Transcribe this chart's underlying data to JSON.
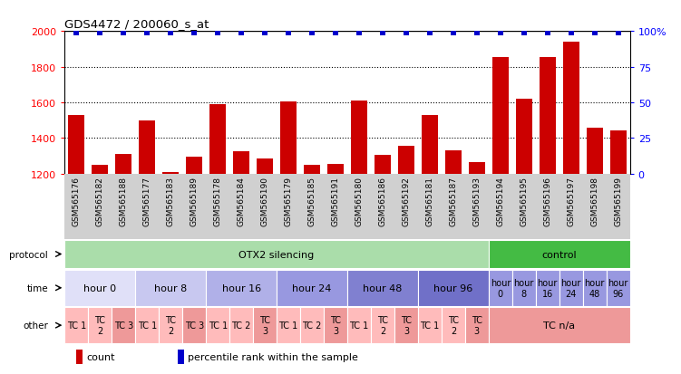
{
  "title": "GDS4472 / 200060_s_at",
  "samples": [
    "GSM565176",
    "GSM565182",
    "GSM565188",
    "GSM565177",
    "GSM565183",
    "GSM565189",
    "GSM565178",
    "GSM565184",
    "GSM565190",
    "GSM565179",
    "GSM565185",
    "GSM565191",
    "GSM565180",
    "GSM565186",
    "GSM565192",
    "GSM565181",
    "GSM565187",
    "GSM565193",
    "GSM565194",
    "GSM565195",
    "GSM565196",
    "GSM565197",
    "GSM565198",
    "GSM565199"
  ],
  "counts": [
    1530,
    1250,
    1310,
    1495,
    1210,
    1295,
    1590,
    1325,
    1285,
    1605,
    1250,
    1255,
    1610,
    1305,
    1355,
    1530,
    1330,
    1265,
    1855,
    1620,
    1855,
    1940,
    1455,
    1440
  ],
  "percentiles": [
    99,
    99,
    99,
    99,
    99,
    99,
    99,
    99,
    99,
    99,
    99,
    99,
    99,
    99,
    99,
    99,
    99,
    99,
    99,
    99,
    99,
    99,
    99,
    99
  ],
  "ylim_left": [
    1200,
    2000
  ],
  "ylim_right": [
    0,
    100
  ],
  "yticks_left": [
    1200,
    1400,
    1600,
    1800,
    2000
  ],
  "yticks_right": [
    0,
    25,
    50,
    75,
    100
  ],
  "bar_color": "#cc0000",
  "dot_color": "#0000cc",
  "bg_gray": "#d0d0d0",
  "protocol_groups": [
    {
      "label": "OTX2 silencing",
      "start": 0,
      "end": 18,
      "color": "#aaddaa"
    },
    {
      "label": "control",
      "start": 18,
      "end": 24,
      "color": "#44bb44"
    }
  ],
  "time_groups": [
    {
      "label": "hour 0",
      "start": 0,
      "end": 3,
      "color": "#e0e0f8"
    },
    {
      "label": "hour 8",
      "start": 3,
      "end": 6,
      "color": "#c8c8f0"
    },
    {
      "label": "hour 16",
      "start": 6,
      "end": 9,
      "color": "#b0b0e8"
    },
    {
      "label": "hour 24",
      "start": 9,
      "end": 12,
      "color": "#9898e0"
    },
    {
      "label": "hour 48",
      "start": 12,
      "end": 15,
      "color": "#8080d0"
    },
    {
      "label": "hour 96",
      "start": 15,
      "end": 18,
      "color": "#7070c8"
    },
    {
      "label": "hour\n0",
      "start": 18,
      "end": 19,
      "color": "#9898e0"
    },
    {
      "label": "hour\n8",
      "start": 19,
      "end": 20,
      "color": "#9898e0"
    },
    {
      "label": "hour\n16",
      "start": 20,
      "end": 21,
      "color": "#9898e0"
    },
    {
      "label": "hour\n24",
      "start": 21,
      "end": 22,
      "color": "#9898e0"
    },
    {
      "label": "hour\n48",
      "start": 22,
      "end": 23,
      "color": "#9898e0"
    },
    {
      "label": "hour\n96",
      "start": 23,
      "end": 24,
      "color": "#9898e0"
    }
  ],
  "other_groups": [
    {
      "label": "TC 1",
      "start": 0,
      "end": 1,
      "color": "#ffbbbb"
    },
    {
      "label": "TC\n2",
      "start": 1,
      "end": 2,
      "color": "#ffbbbb"
    },
    {
      "label": "TC 3",
      "start": 2,
      "end": 3,
      "color": "#ee9999"
    },
    {
      "label": "TC 1",
      "start": 3,
      "end": 4,
      "color": "#ffbbbb"
    },
    {
      "label": "TC\n2",
      "start": 4,
      "end": 5,
      "color": "#ffbbbb"
    },
    {
      "label": "TC 3",
      "start": 5,
      "end": 6,
      "color": "#ee9999"
    },
    {
      "label": "TC 1",
      "start": 6,
      "end": 7,
      "color": "#ffbbbb"
    },
    {
      "label": "TC 2",
      "start": 7,
      "end": 8,
      "color": "#ffbbbb"
    },
    {
      "label": "TC\n3",
      "start": 8,
      "end": 9,
      "color": "#ee9999"
    },
    {
      "label": "TC 1",
      "start": 9,
      "end": 10,
      "color": "#ffbbbb"
    },
    {
      "label": "TC 2",
      "start": 10,
      "end": 11,
      "color": "#ffbbbb"
    },
    {
      "label": "TC\n3",
      "start": 11,
      "end": 12,
      "color": "#ee9999"
    },
    {
      "label": "TC 1",
      "start": 12,
      "end": 13,
      "color": "#ffbbbb"
    },
    {
      "label": "TC\n2",
      "start": 13,
      "end": 14,
      "color": "#ffbbbb"
    },
    {
      "label": "TC\n3",
      "start": 14,
      "end": 15,
      "color": "#ee9999"
    },
    {
      "label": "TC 1",
      "start": 15,
      "end": 16,
      "color": "#ffbbbb"
    },
    {
      "label": "TC\n2",
      "start": 16,
      "end": 17,
      "color": "#ffbbbb"
    },
    {
      "label": "TC\n3",
      "start": 17,
      "end": 18,
      "color": "#ee9999"
    },
    {
      "label": "TC n/a",
      "start": 18,
      "end": 24,
      "color": "#ee9999"
    }
  ],
  "row_labels": [
    "protocol",
    "time",
    "other"
  ],
  "legend_items": [
    {
      "color": "#cc0000",
      "label": "count"
    },
    {
      "color": "#0000cc",
      "label": "percentile rank within the sample"
    }
  ]
}
